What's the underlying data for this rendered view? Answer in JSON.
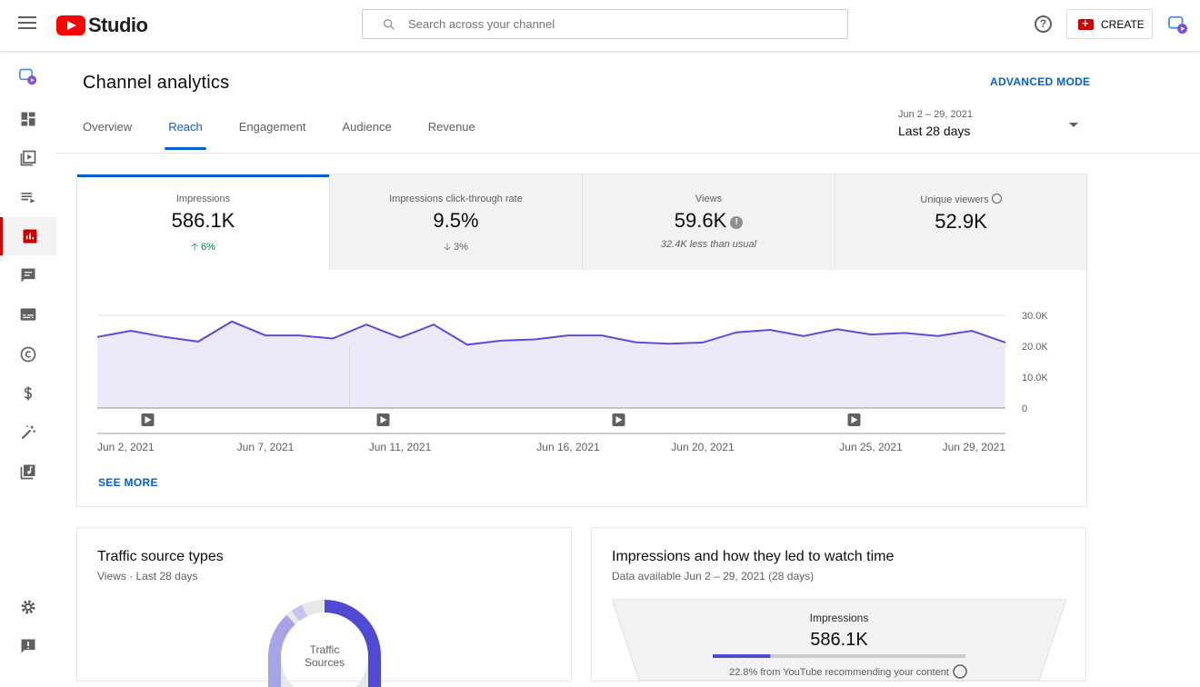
{
  "app": {
    "logo_text": "Studio"
  },
  "search": {
    "placeholder": "Search across your channel"
  },
  "header": {
    "create_label": "CREATE",
    "help": "?"
  },
  "page": {
    "title": "Channel analytics",
    "advanced_mode": "ADVANCED MODE"
  },
  "tabs": [
    {
      "label": "Overview"
    },
    {
      "label": "Reach"
    },
    {
      "label": "Engagement"
    },
    {
      "label": "Audience"
    },
    {
      "label": "Revenue"
    }
  ],
  "daterange": {
    "range": "Jun 2 – 29, 2021",
    "label": "Last 28 days"
  },
  "metrics": [
    {
      "label": "Impressions",
      "value": "586.1K",
      "delta": "6%",
      "direction": "up"
    },
    {
      "label": "Impressions click-through rate",
      "value": "9.5%",
      "delta": "3%",
      "direction": "down"
    },
    {
      "label": "Views",
      "value": "59.6K",
      "note": "32.4K less than usual",
      "info": "!"
    },
    {
      "label": "Unique viewers",
      "value": "52.9K"
    }
  ],
  "chart_data": {
    "type": "area",
    "x": [
      "Jun 2",
      "Jun 3",
      "Jun 4",
      "Jun 5",
      "Jun 6",
      "Jun 7",
      "Jun 8",
      "Jun 9",
      "Jun 10",
      "Jun 11",
      "Jun 12",
      "Jun 13",
      "Jun 14",
      "Jun 15",
      "Jun 16",
      "Jun 17",
      "Jun 18",
      "Jun 19",
      "Jun 20",
      "Jun 21",
      "Jun 22",
      "Jun 23",
      "Jun 24",
      "Jun 25",
      "Jun 26",
      "Jun 27",
      "Jun 28",
      "Jun 29"
    ],
    "series": [
      {
        "values": [
          23000,
          25000,
          23000,
          21500,
          28000,
          23500,
          23500,
          22500,
          27000,
          22800,
          27000,
          20500,
          21800,
          22200,
          23500,
          23500,
          21300,
          20800,
          21200,
          24500,
          25300,
          23300,
          25500,
          23800,
          24300,
          23300,
          25000,
          21200
        ],
        "color": "#5b4dd8"
      }
    ],
    "ylim": [
      0,
      30000
    ],
    "yticks": [
      "30.0K",
      "20.0K",
      "10.0K",
      "0"
    ],
    "xtick_labels": [
      {
        "label": "Jun 2, 2021",
        "index": 0
      },
      {
        "label": "Jun 7, 2021",
        "index": 5
      },
      {
        "label": "Jun 11, 2021",
        "index": 9
      },
      {
        "label": "Jun 16, 2021",
        "index": 14
      },
      {
        "label": "Jun 20, 2021",
        "index": 18
      },
      {
        "label": "Jun 25, 2021",
        "index": 23
      },
      {
        "label": "Jun 29, 2021",
        "index": 27
      }
    ],
    "video_markers": [
      1,
      8,
      15,
      22
    ],
    "fill_color": "#eceaf8"
  },
  "see_more": "SEE MORE",
  "traffic": {
    "title": "Traffic source types",
    "subtitle": "Views · Last 28 days",
    "center_label_1": "Traffic",
    "center_label_2": "Sources"
  },
  "impressions_card": {
    "title": "Impressions and how they led to watch time",
    "subtitle": "Data available Jun 2 – 29, 2021 (28 days)",
    "funnel_label": "Impressions",
    "funnel_value": "586.1K",
    "funnel_note": "22.8% from YouTube recommending your content",
    "funnel_percent": 22.8
  }
}
